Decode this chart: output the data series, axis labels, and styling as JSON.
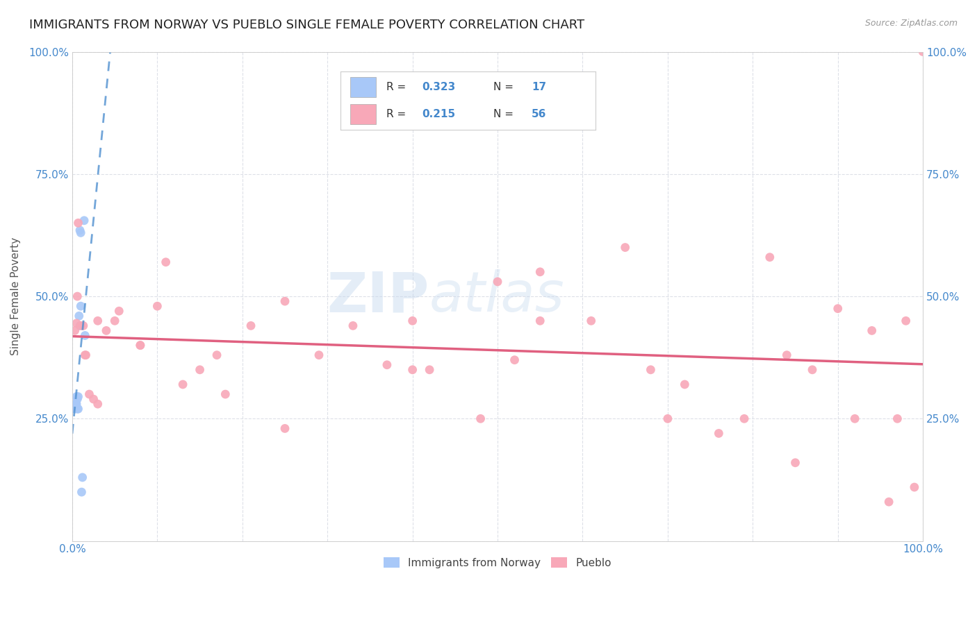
{
  "title": "IMMIGRANTS FROM NORWAY VS PUEBLO SINGLE FEMALE POVERTY CORRELATION CHART",
  "source": "Source: ZipAtlas.com",
  "ylabel": "Single Female Poverty",
  "xlim": [
    0,
    1.0
  ],
  "ylim": [
    0,
    1.0
  ],
  "norway_color": "#a8c8f8",
  "pueblo_color": "#f8a8b8",
  "norway_line_color": "#5090d0",
  "pueblo_line_color": "#e06080",
  "norway_R": 0.323,
  "norway_N": 17,
  "pueblo_R": 0.215,
  "pueblo_N": 56,
  "watermark": "ZIPatlas",
  "background_color": "#ffffff",
  "grid_color": "#dde0e8",
  "title_fontsize": 13,
  "axis_fontsize": 11,
  "tick_color": "#4488cc",
  "marker_size": 85,
  "norway_x": [
    0.003,
    0.004,
    0.005,
    0.005,
    0.006,
    0.006,
    0.007,
    0.007,
    0.008,
    0.009,
    0.009,
    0.01,
    0.01,
    0.011,
    0.012,
    0.014,
    0.015
  ],
  "norway_y": [
    0.27,
    0.28,
    0.28,
    0.295,
    0.29,
    0.27,
    0.295,
    0.27,
    0.46,
    0.44,
    0.635,
    0.48,
    0.63,
    0.1,
    0.13,
    0.655,
    0.42
  ],
  "pueblo_x": [
    0.003,
    0.005,
    0.007,
    0.01,
    0.013,
    0.016,
    0.02,
    0.025,
    0.03,
    0.04,
    0.055,
    0.08,
    0.1,
    0.13,
    0.17,
    0.21,
    0.25,
    0.29,
    0.33,
    0.37,
    0.4,
    0.42,
    0.48,
    0.5,
    0.52,
    0.55,
    0.61,
    0.65,
    0.68,
    0.72,
    0.76,
    0.79,
    0.82,
    0.84,
    0.87,
    0.9,
    0.92,
    0.94,
    0.96,
    0.97,
    0.98,
    0.99,
    1.0,
    0.006,
    0.015,
    0.03,
    0.05,
    0.08,
    0.11,
    0.15,
    0.18,
    0.25,
    0.4,
    0.55,
    0.7,
    0.85
  ],
  "pueblo_y": [
    0.43,
    0.445,
    0.65,
    0.44,
    0.44,
    0.38,
    0.3,
    0.29,
    0.28,
    0.43,
    0.47,
    0.4,
    0.48,
    0.32,
    0.38,
    0.44,
    0.49,
    0.38,
    0.44,
    0.36,
    0.45,
    0.35,
    0.25,
    0.53,
    0.37,
    0.55,
    0.45,
    0.6,
    0.35,
    0.32,
    0.22,
    0.25,
    0.58,
    0.38,
    0.35,
    0.475,
    0.25,
    0.43,
    0.08,
    0.25,
    0.45,
    0.11,
    1.0,
    0.5,
    0.38,
    0.45,
    0.45,
    0.4,
    0.57,
    0.35,
    0.3,
    0.23,
    0.35,
    0.45,
    0.25,
    0.16
  ]
}
